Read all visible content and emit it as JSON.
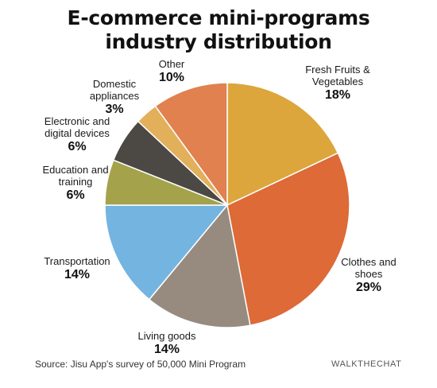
{
  "chart_data": {
    "type": "pie",
    "title_lines": [
      "E-commerce mini-programs",
      "industry distribution"
    ],
    "slices": [
      {
        "name_lines": [
          "Fresh Fruits &",
          "Vegetables"
        ],
        "value": 18,
        "label": "18%",
        "color": "#dca63c"
      },
      {
        "name_lines": [
          "Clothes and",
          "shoes"
        ],
        "value": 29,
        "label": "29%",
        "color": "#dd6a37"
      },
      {
        "name_lines": [
          "Living goods"
        ],
        "value": 14,
        "label": "14%",
        "color": "#978b80"
      },
      {
        "name_lines": [
          "Transportation"
        ],
        "value": 14,
        "label": "14%",
        "color": "#74b4e1"
      },
      {
        "name_lines": [
          "Education and",
          "training"
        ],
        "value": 6,
        "label": "6%",
        "color": "#a4a34c"
      },
      {
        "name_lines": [
          "Electronic and",
          "digital devices"
        ],
        "value": 6,
        "label": "6%",
        "color": "#4c4844"
      },
      {
        "name_lines": [
          "Domestic",
          "appliances"
        ],
        "value": 3,
        "label": "3%",
        "color": "#e2b05a"
      },
      {
        "name_lines": [
          "Other"
        ],
        "value": 10,
        "label": "10%",
        "color": "#e0814f"
      }
    ]
  },
  "footer": {
    "source": "Source: Jisu App's survey of 50,000 Mini Program",
    "brand": "WALKTHECHAT"
  }
}
